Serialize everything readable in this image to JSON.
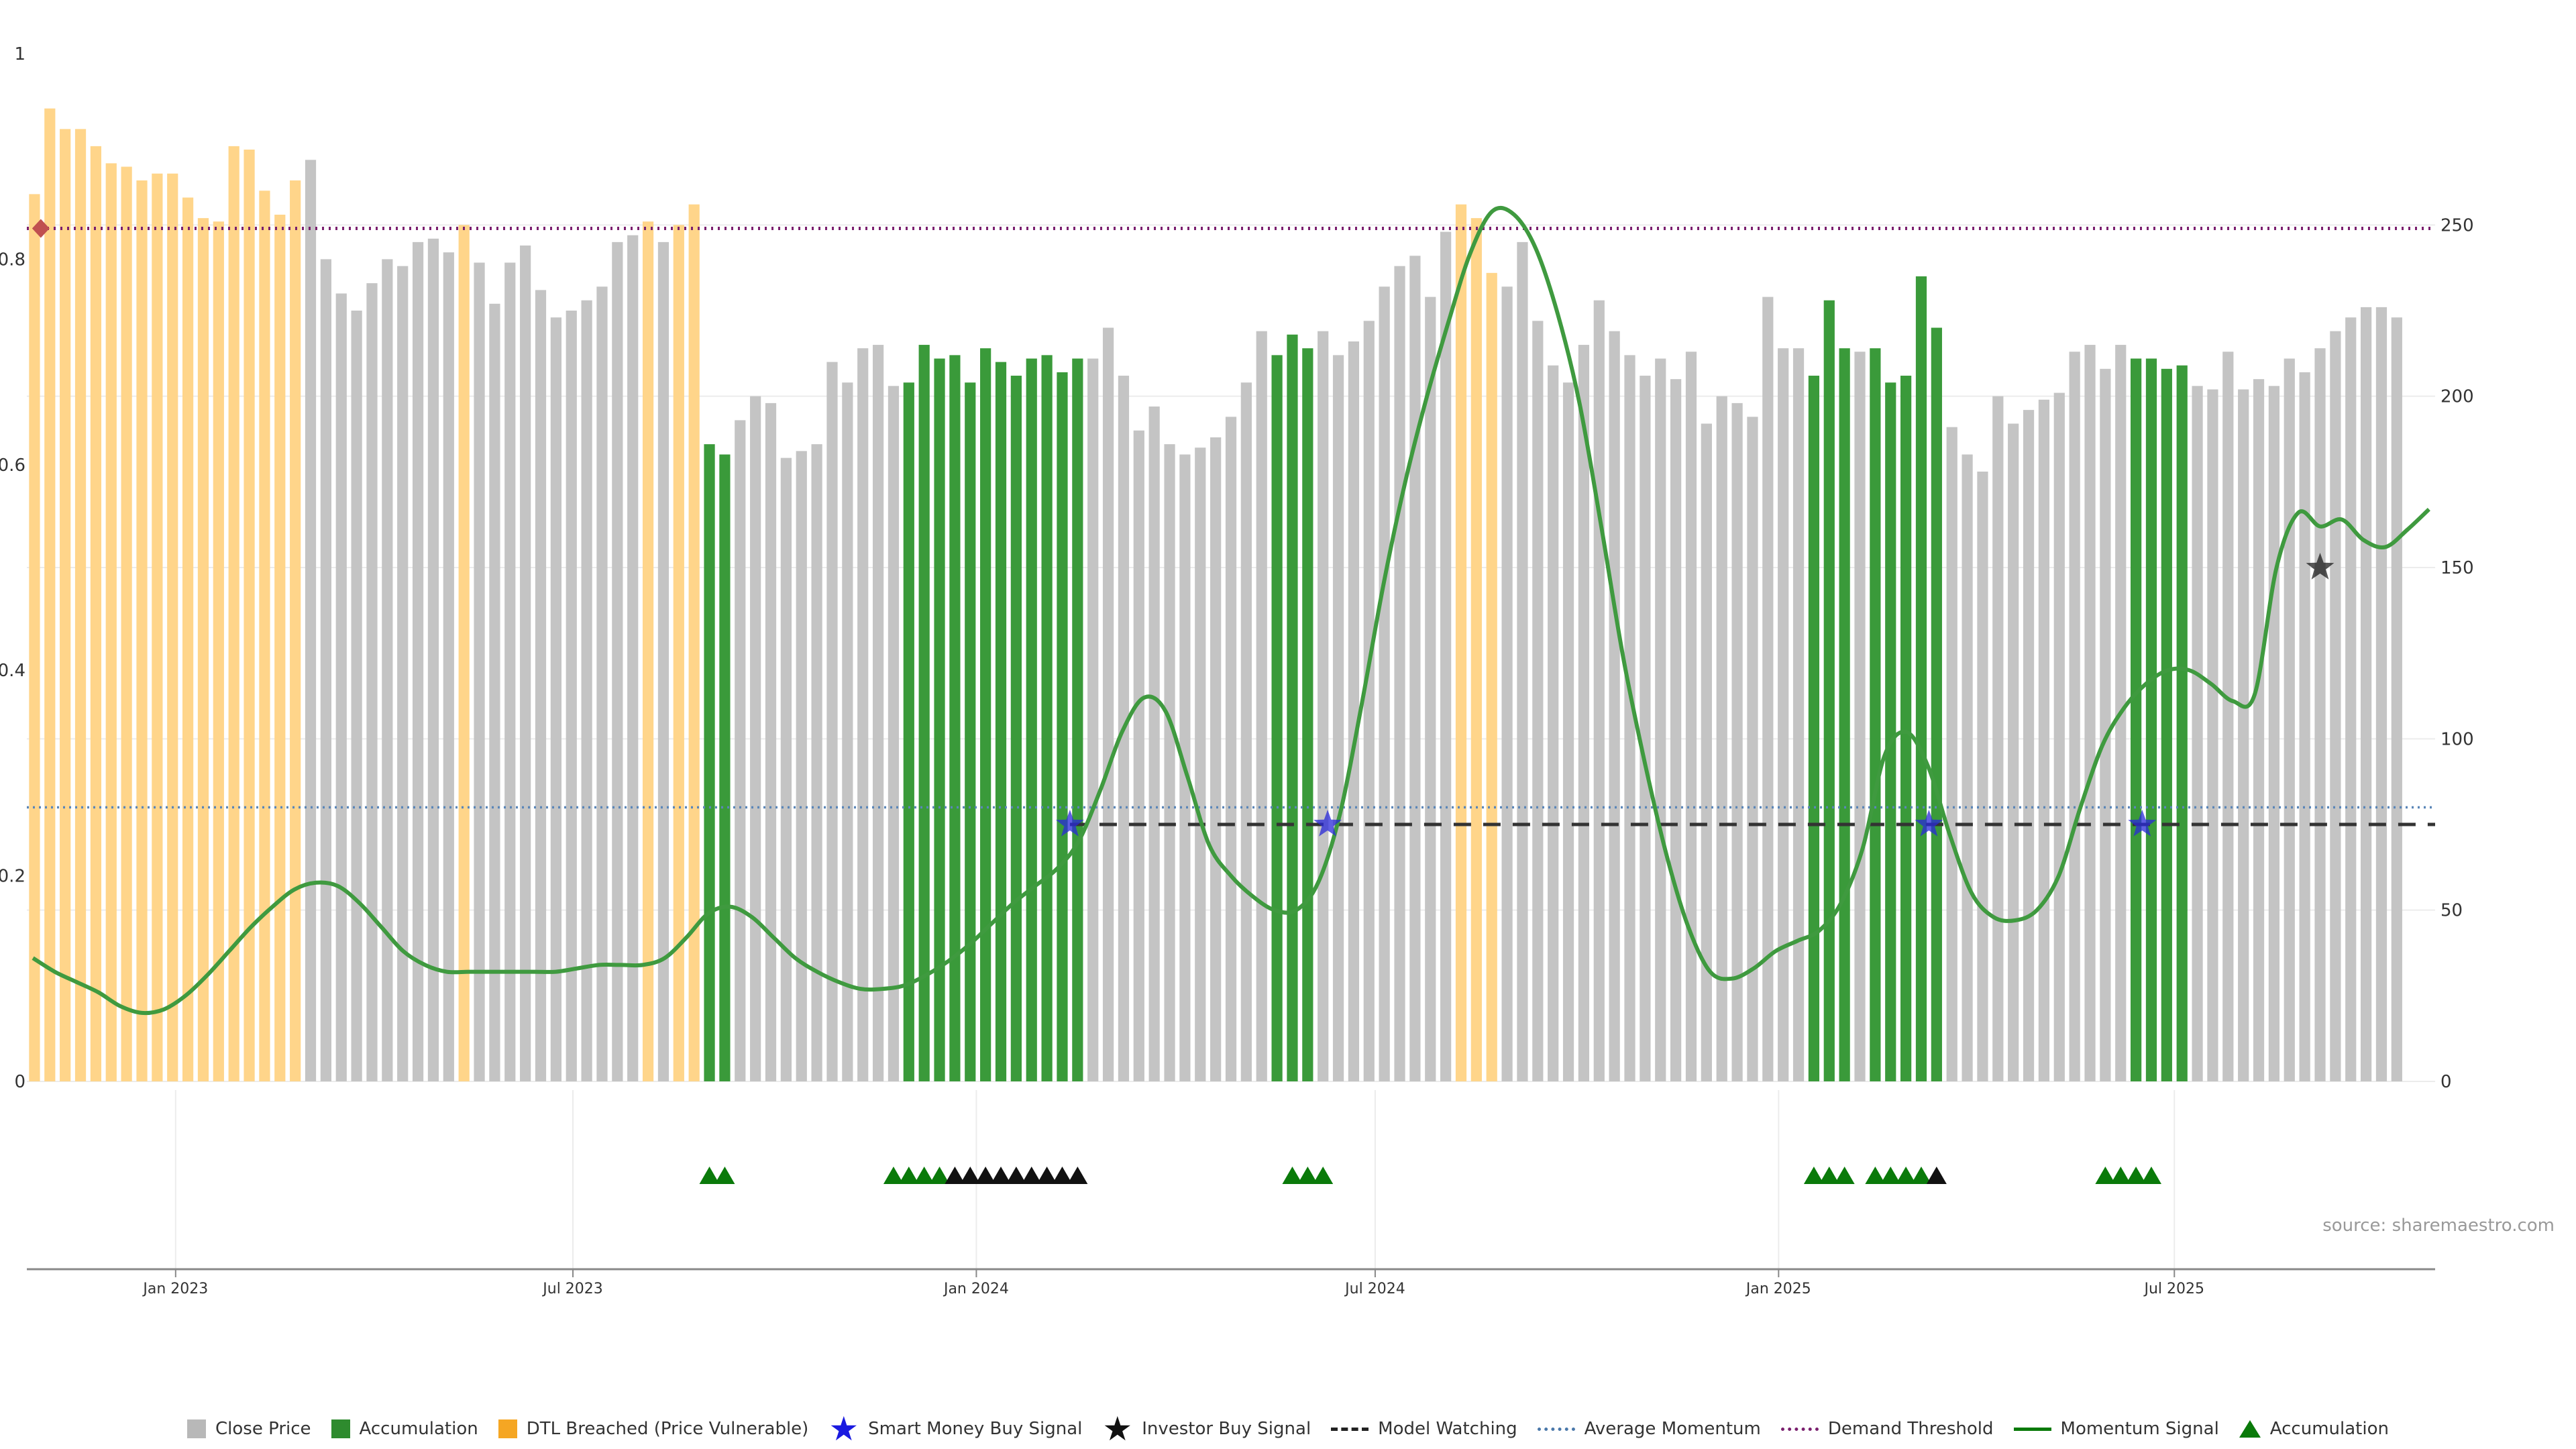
{
  "source_text": "source: sharemaestro.com",
  "colors": {
    "close": "#c4c4c4",
    "accumulation": "#3a9a3a",
    "dtl": "#ffd58a",
    "momentum": "#3f9a3f",
    "momentum_bright": "#0a7a0a",
    "smart_star": "#2a2ad8",
    "investor_star": "#111111",
    "watch_line": "#333333",
    "avg_line": "#5a86b8",
    "demand_line": "#7a1f6e",
    "diamond": "#c05050",
    "triangle_green": "#0a7a0a",
    "triangle_black": "#111111"
  },
  "legend": [
    {
      "label": "Close Price",
      "symbol": "square",
      "color": "#b8b8b8"
    },
    {
      "label": "Accumulation",
      "symbol": "square",
      "color": "#2e8b2e"
    },
    {
      "label": "DTL Breached (Price Vulnerable)",
      "symbol": "square",
      "color": "#f5a623"
    },
    {
      "label": "Smart Money Buy Signal",
      "symbol": "star",
      "color": "#1a1ae0"
    },
    {
      "label": "Investor Buy Signal",
      "symbol": "star",
      "color": "#111111"
    },
    {
      "label": "Model Watching",
      "symbol": "dashed",
      "color": "#222222"
    },
    {
      "label": "Average Momentum",
      "symbol": "dotted",
      "color": "#4a78aa"
    },
    {
      "label": "Demand Threshold",
      "symbol": "dotted",
      "color": "#7a1f6e"
    },
    {
      "label": "Momentum Signal",
      "symbol": "solid",
      "color": "#0a7a0a"
    },
    {
      "label": "Accumulation",
      "symbol": "triangle",
      "color": "#0a7a0a"
    }
  ],
  "chart_data": {
    "type": "bar",
    "left_axis": {
      "ticks": [
        "0",
        "0.2",
        "0.4",
        "0.6",
        "0.8",
        "1"
      ],
      "range": [
        0,
        1
      ]
    },
    "right_axis": {
      "ticks": [
        "0",
        "50",
        "100",
        "150",
        "200",
        "250"
      ],
      "range": [
        0,
        300
      ]
    },
    "x_ticks": [
      {
        "label": "Jan 2023",
        "week": 9.7
      },
      {
        "label": "Jul 2023",
        "week": 35.6
      },
      {
        "label": "Jan 2024",
        "week": 61.9
      },
      {
        "label": "Jul 2024",
        "week": 87.9
      },
      {
        "label": "Jan 2025",
        "week": 114.2
      },
      {
        "label": "Jul 2025",
        "week": 140.0
      }
    ],
    "x_range": [
      0,
      157
    ],
    "series_close": {
      "name": "Close Price",
      "values": [
        259,
        284,
        278,
        278,
        273,
        268,
        267,
        263,
        265,
        265,
        258,
        252,
        251,
        273,
        272,
        260,
        253,
        263,
        269,
        240,
        230,
        225,
        233,
        240,
        238,
        245,
        246,
        242,
        250,
        239,
        227,
        239,
        244,
        231,
        223,
        225,
        228,
        232,
        245,
        247,
        251,
        245,
        250,
        256,
        186,
        183,
        193,
        200,
        198,
        182,
        184,
        186,
        210,
        204,
        214,
        215,
        203,
        204,
        215,
        211,
        212,
        204,
        214,
        210,
        206,
        211,
        212,
        207,
        211,
        211,
        220,
        206,
        190,
        197,
        186,
        183,
        185,
        188,
        194,
        204,
        219,
        212,
        218,
        214,
        219,
        212,
        216,
        222,
        232,
        238,
        241,
        229,
        248,
        256,
        252,
        236,
        232,
        245,
        222,
        209,
        204,
        215,
        228,
        219,
        212,
        206,
        211,
        205,
        213,
        192,
        200,
        198,
        194,
        229,
        214,
        214,
        206,
        228,
        214,
        213,
        214,
        204,
        206,
        235,
        220,
        191,
        183,
        178,
        200,
        192,
        196,
        199,
        201,
        213,
        215,
        208,
        215,
        211,
        211,
        208,
        209,
        203,
        202,
        213,
        202,
        205,
        203,
        211,
        207,
        214,
        219,
        223,
        226,
        226,
        223
      ]
    },
    "series_state": {
      "legend": {
        "c": "Close Price",
        "a": "Accumulation",
        "d": "DTL Breached (Price Vulnerable)"
      },
      "values": "ddddddddddddddddddccccccccccdcccccccccccdcddaacccccccccccaaaaaaaaaaaaccccccccccccaaacccccccccdddccccccccccccccccccccaaacaaaaaccccccccccccaaaacccccccccccccccccc"
    },
    "series_momentum": {
      "name": "Momentum Signal",
      "values": [
        36,
        32,
        29,
        26,
        22,
        20,
        21,
        25,
        31,
        38,
        45,
        51,
        56,
        58,
        57,
        52,
        45,
        38,
        34,
        32,
        32,
        32,
        32,
        32,
        32,
        33,
        34,
        34,
        34,
        36,
        42,
        49,
        51,
        48,
        42,
        36,
        32,
        29,
        27,
        27,
        28,
        31,
        35,
        40,
        46,
        52,
        57,
        62,
        70,
        85,
        102,
        112,
        108,
        89,
        69,
        60,
        54,
        50,
        50,
        58,
        78,
        110,
        145,
        175,
        200,
        222,
        242,
        254,
        253,
        243,
        224,
        198,
        162,
        124,
        93,
        66,
        45,
        32,
        30,
        33,
        38,
        41,
        44,
        52,
        68,
        95,
        102,
        92,
        72,
        55,
        48,
        47,
        50,
        60,
        80,
        98,
        109,
        116,
        120,
        120,
        116,
        111,
        113,
        150,
        166,
        162,
        164,
        158,
        156,
        161,
        167
      ],
      "x_start": 0.4,
      "x_end": 156.6
    },
    "demand_threshold": {
      "name": "Demand Threshold",
      "value": 249
    },
    "average_momentum": {
      "name": "Average Momentum",
      "value": 80
    },
    "model_watching": {
      "name": "Model Watching",
      "value": 75,
      "x_start": 68.0
    },
    "demand_diamond": {
      "week": 0.3,
      "value": 249
    },
    "smart_money_signals": [
      {
        "week": 68.0,
        "value": 75
      },
      {
        "week": 84.8,
        "value": 75
      },
      {
        "week": 124.0,
        "value": 75
      },
      {
        "week": 137.9,
        "value": 75
      }
    ],
    "investor_signals": [
      {
        "week": 149.5,
        "value": 150
      }
    ],
    "accumulation_triangles_green": [
      44,
      45,
      56,
      57,
      58,
      59,
      82,
      83,
      84,
      116,
      117,
      118,
      120,
      121,
      122,
      123,
      135,
      136,
      137,
      138
    ],
    "accumulation_triangles_black": [
      60,
      61,
      62,
      63,
      64,
      65,
      66,
      67,
      68,
      124
    ]
  }
}
